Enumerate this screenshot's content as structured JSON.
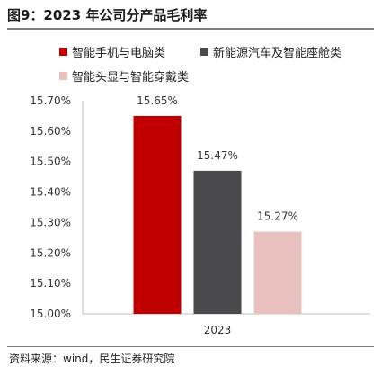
{
  "title": "图9：2023 年公司分产品毛利率",
  "source": "资料来源：wind，民生证券研究院",
  "chart_data": {
    "type": "bar",
    "categories": [
      "2023"
    ],
    "series": [
      {
        "name": "智能手机与电脑类",
        "values": [
          15.65
        ],
        "color": "#C00000",
        "label": "15.65%"
      },
      {
        "name": "新能源汽车及智能座舱类",
        "values": [
          15.47
        ],
        "color": "#4A4A4D",
        "label": "15.47%"
      },
      {
        "name": "智能头显与智能穿戴类",
        "values": [
          15.27
        ],
        "color": "#E8C0BE",
        "label": "15.27%"
      }
    ],
    "ylim": [
      15.0,
      15.7
    ],
    "yticks": [
      "15.00%",
      "15.10%",
      "15.20%",
      "15.30%",
      "15.40%",
      "15.50%",
      "15.60%",
      "15.70%"
    ],
    "ytick_values": [
      15.0,
      15.1,
      15.2,
      15.3,
      15.4,
      15.5,
      15.6,
      15.7
    ],
    "xlabel": "",
    "ylabel": "",
    "grid": false,
    "legend_position": "top"
  }
}
